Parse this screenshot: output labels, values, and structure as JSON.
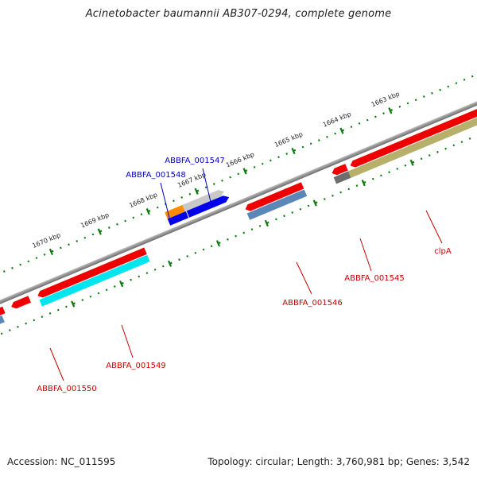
{
  "title": "Acinetobacter baumannii AB307-0294, complete genome",
  "footer": {
    "accession": "Accession: NC_011595",
    "summary": "Topology: circular; Length: 3,760,981 bp; Genes: 3,542"
  },
  "ticks": [
    "1663 kbp",
    "1664 kbp",
    "1665 kbp",
    "1666 kbp",
    "1667 kbp",
    "1668 kbp",
    "1669 kbp",
    "1670 kbp"
  ],
  "genes": {
    "g1547": "ABBFA_001547",
    "g1548": "ABBFA_001548",
    "g1545": "ABBFA_001545",
    "g1546": "ABBFA_001546",
    "clpA": "clpA",
    "g1549": "ABBFA_001549",
    "g1550": "ABBFA_001550"
  },
  "colors": {
    "cds_red": "#ee0000",
    "label_red": "#cc0000",
    "label_blue": "#0000bb",
    "steel_blue": "#5a86b8",
    "cyan": "#00e5ee",
    "olive": "#b7b06a",
    "orange": "#ff8c00",
    "blue": "#0000ee",
    "gray": "#6e6e6e",
    "light_gray": "#c8c8c8",
    "backbone": "#777777",
    "tick_green": "#0d7a0d"
  }
}
